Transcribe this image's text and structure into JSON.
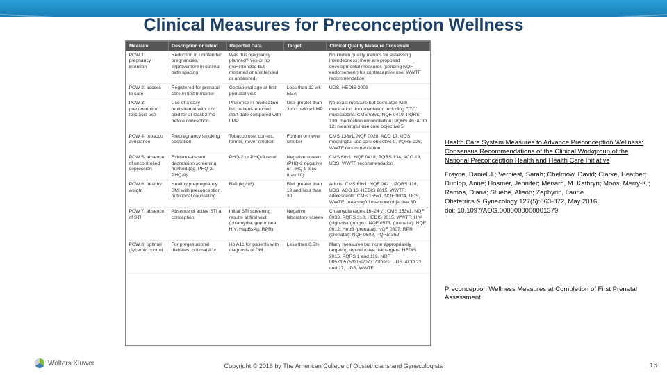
{
  "title": "Clinical Measures for Preconception Wellness",
  "page_number": "16",
  "copyright": "Copyright © 2016 by The American College of Obstetricians and Gynecologists",
  "logo_text": "Wolters Kluwer",
  "table": {
    "columns": [
      "Measure",
      "Description or Intent",
      "Reported Data",
      "Target",
      "Clinical Quality Measure Crosswalk"
    ],
    "col_widths": [
      "14%",
      "19%",
      "19%",
      "14%",
      "34%"
    ],
    "rows": [
      [
        "PCW 1: pregnancy intention",
        "Reduction in unintended pregnancies, improvement in optimal birth spacing",
        "Was this pregnancy planned? Yes or no (no=intended but mistimed or unintended or undesired)",
        "",
        "No known quality metrics for assessing intendedness; there are proposed developmental measures (pending NQF endorsement) for contraceptive use; WWTF recommendation"
      ],
      [
        "PCW 2: access to care",
        "Registered for prenatal care in first trimester",
        "Gestational age at first prenatal visit",
        "Less than 12 wk EGA",
        "UDS, HEDIS 2008"
      ],
      [
        "PCW 3: preconception folic acid use",
        "Use of a daily multivitamin with folic acid for at least 3 mo before conception",
        "Presence in medication list; patient-reported start date compared with LMP",
        "Use greater than 3 mo before LMP",
        "No exact measure but correlates with medication documentation including OTC medications: CMS 68v1, NQF 0419, PQRS 130; medication reconciliation: PQRS 46, ACO 12; meaningful use core objective 5"
      ],
      [
        "PCW 4: tobacco avoidance",
        "Prepregnancy smoking cessation",
        "Tobacco use: current, former, never smoker",
        "Former or never smoker",
        "CMS 138v1, NQF 0028, ACO 17, UDS, meaningful use core objective 9, PQRS 226, WWTF recommendation"
      ],
      [
        "PCW 5: absence of uncontrolled depression",
        "Evidence-based depression screening method (eg, PHQ-2, PHQ-9)",
        "PHQ-2 or PHQ-9 result",
        "Negative screen (PHQ-2 negative or PHQ-9 less than 10)",
        "CMS 68v1, NQF 0418, PQRS 134, ACO 18, UDS, WWTF recommendation"
      ],
      [
        "PCW 6: healthy weight",
        "Healthy prepregnancy BMI with preconception nutritional counseling",
        "BMI (kg/m²)",
        "BMI greater than 18 and less than 30",
        "Adults: CMS 69v1, NQF 0421, PQRS 128, UDS, ACO 16, HEDIS 2015, WWTF; adolescents: CMS 155v1, NQF 0024, UDS, WWTF; meaningful use core objective 8D"
      ],
      [
        "PCW 7: absence of STI",
        "Absence of active STI at conception",
        "Initial STI screening results at first visit (chlamydia, gonorrhea, HIV, HepBsAg, RPR)",
        "Negative laboratory screen",
        "Chlamydia (ages 16–24 y): CMS 153v1, NQF 0033, PQRS 310, HEDIS 2015, WWTF; HIV (high-risk groups): NQF 0573, (prenatal): NQF 0012; HepB (prenatal): NQF 0607; RPR (prenatal): NQF 0608, PQRS 369"
      ],
      [
        "PCW 8: optimal glycemic control",
        "For pregestational diabetes, optimal A1c",
        "Hb A1c for patients with diagnosis of DM",
        "Less than 6.5%",
        "Many measures but none appropriately targeting reproductive risk targets; HEDIS 2015, PQRS 1 and 119, NQF 0057/0575/0059/0731/others, UDS, ACO 22 and 27, UDS, WWTF"
      ]
    ]
  },
  "citation": {
    "title": "Health Care System Measures to Advance Preconception Wellness: Consensus Recommendations of the Clinical Workgroup of the National Preconception Health and Health Care Initiative",
    "authors": "Frayne, Daniel J.; Verbiest, Sarah; Chelmow, David; Clarke, Heather; Dunlop, Anne; Hosmer, Jennifer; Menard, M. Kathryn; Moos, Merry-K.; Ramos, Diana; Stuebe, Alison; Zephyrin, Laurie",
    "journal": "Obstetrics & Gynecology 127(5):863-872, May 2016.",
    "doi": "doi: 10.1097/AOG.0000000000001379",
    "caption": "Preconception Wellness Measures at Completion of First Prenatal Assessment"
  },
  "colors": {
    "band_top": "#2a9fd8",
    "band_bottom": "#1a7fb8",
    "title_color": "#1c3f66",
    "th_bg": "#555555",
    "th_fg": "#ffffff"
  }
}
